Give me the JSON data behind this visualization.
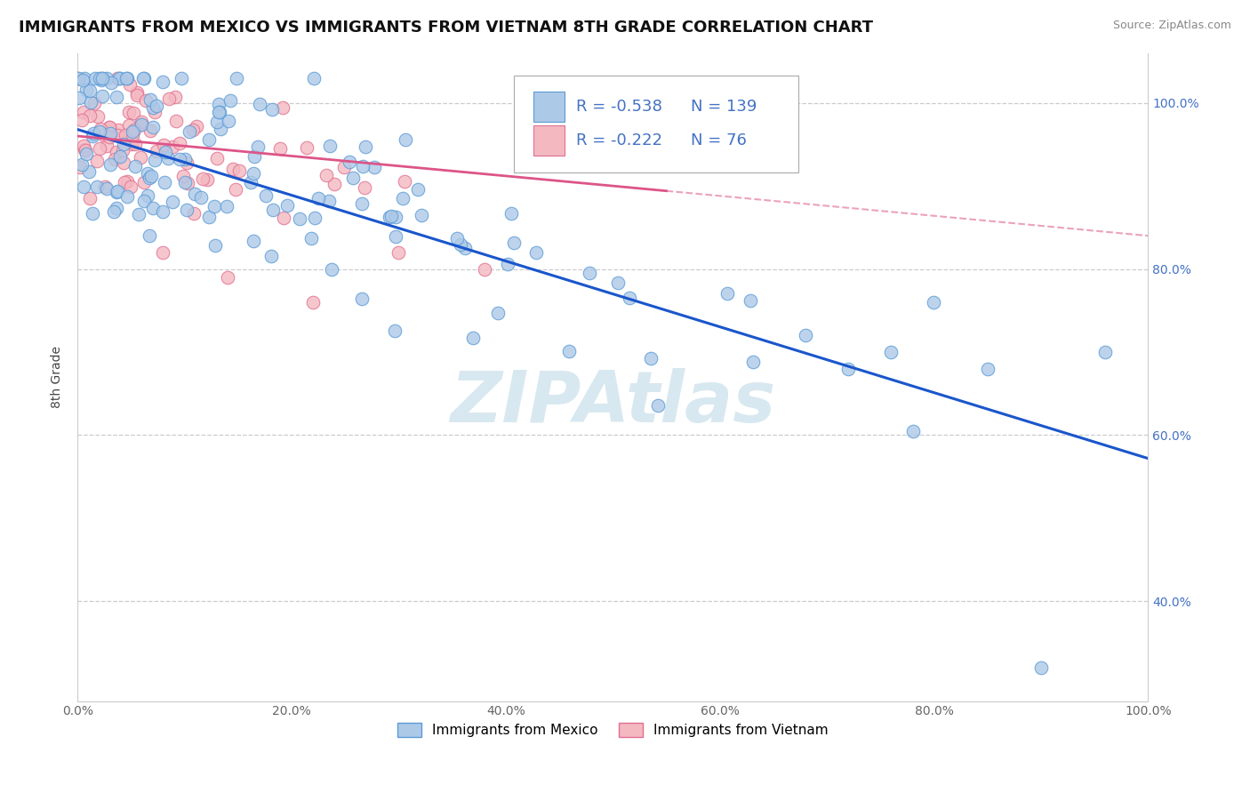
{
  "title": "IMMIGRANTS FROM MEXICO VS IMMIGRANTS FROM VIETNAM 8TH GRADE CORRELATION CHART",
  "source": "Source: ZipAtlas.com",
  "ylabel": "8th Grade",
  "xlim": [
    0.0,
    1.0
  ],
  "ylim": [
    0.28,
    1.06
  ],
  "xticks": [
    0.0,
    0.2,
    0.4,
    0.6,
    0.8,
    1.0
  ],
  "yticks": [
    0.4,
    0.6,
    0.8,
    1.0
  ],
  "xticklabels": [
    "0.0%",
    "20.0%",
    "40.0%",
    "60.0%",
    "80.0%",
    "100.0%"
  ],
  "yticklabels": [
    "40.0%",
    "60.0%",
    "80.0%",
    "100.0%"
  ],
  "mexico_color": "#adc9e8",
  "vietnam_color": "#f4b8c1",
  "mexico_edge": "#5b9bd5",
  "vietnam_edge": "#e07090",
  "mexico_line_color": "#1a56cc",
  "vietnam_line_color": "#dd5588",
  "legend_R_mexico": "-0.538",
  "legend_N_mexico": "139",
  "legend_R_vietnam": "-0.222",
  "legend_N_vietnam": "76",
  "background_color": "#ffffff",
  "grid_color": "#cccccc",
  "title_fontsize": 13,
  "axis_label_fontsize": 10,
  "tick_fontsize": 10,
  "legend_fontsize": 13,
  "mexico_line_y0": 0.968,
  "mexico_line_y1": 0.572,
  "vietnam_line_y0": 0.96,
  "vietnam_line_y1": 0.84,
  "vietnam_line_solid_end": 0.55,
  "vietnam_line_dashed_end": 1.0
}
